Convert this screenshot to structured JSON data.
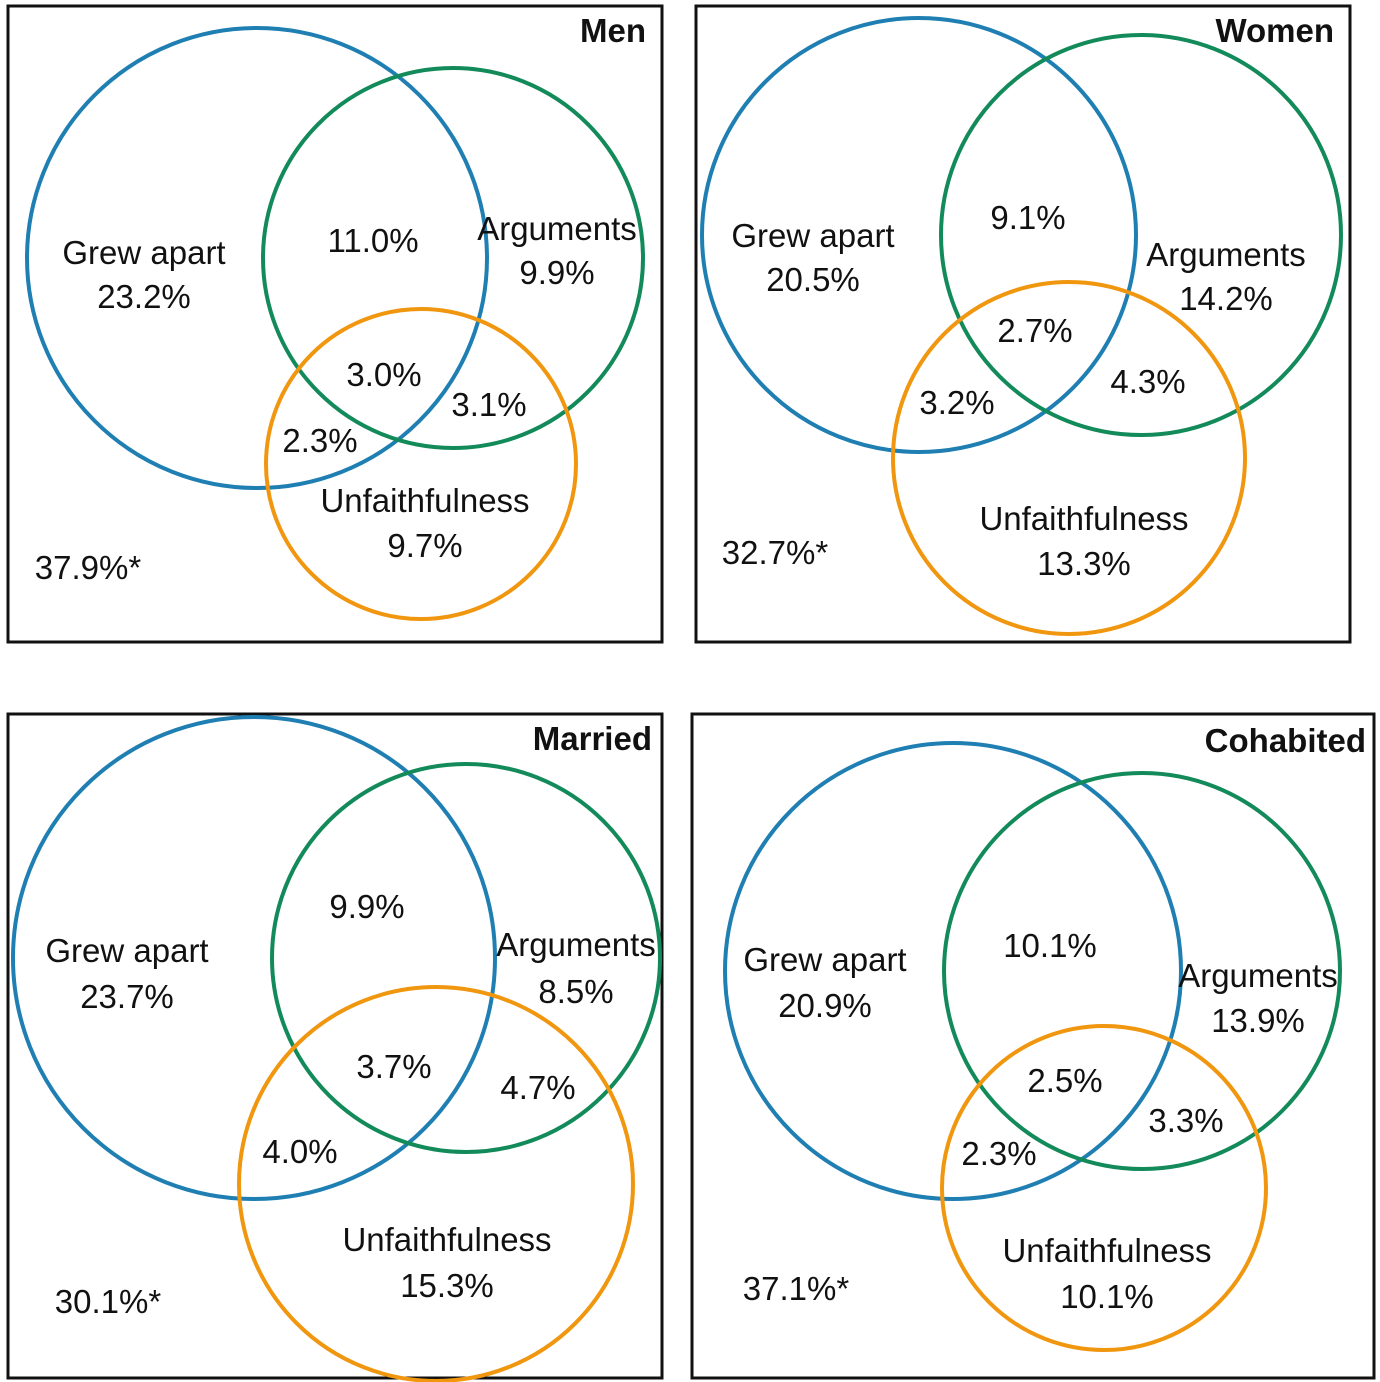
{
  "colors": {
    "grew_apart": "#1f7fb2",
    "arguments": "#138a5a",
    "unfaithfulness": "#f0960f",
    "frame": "#111111",
    "text": "#111111"
  },
  "panels": [
    {
      "id": "men",
      "title": "Men",
      "grew_apart_label": "Grew apart",
      "grew_apart_value": "23.2%",
      "arguments_label": "Arguments",
      "arguments_value": "9.9%",
      "unfaithfulness_label": "Unfaithfulness",
      "unfaithfulness_value": "9.7%",
      "grew_apart_and_arguments": "11.0%",
      "all_three": "3.0%",
      "arguments_and_unfaithfulness": "3.1%",
      "grew_apart_and_unfaithfulness": "2.3%",
      "none": "37.9%*"
    },
    {
      "id": "women",
      "title": "Women",
      "grew_apart_label": "Grew apart",
      "grew_apart_value": "20.5%",
      "arguments_label": "Arguments",
      "arguments_value": "14.2%",
      "unfaithfulness_label": "Unfaithfulness",
      "unfaithfulness_value": "13.3%",
      "grew_apart_and_arguments": "9.1%",
      "all_three": "2.7%",
      "arguments_and_unfaithfulness": "4.3%",
      "grew_apart_and_unfaithfulness": "3.2%",
      "none": "32.7%*"
    },
    {
      "id": "married",
      "title": "Married",
      "grew_apart_label": "Grew apart",
      "grew_apart_value": "23.7%",
      "arguments_label": "Arguments",
      "arguments_value": "8.5%",
      "unfaithfulness_label": "Unfaithfulness",
      "unfaithfulness_value": "15.3%",
      "grew_apart_and_arguments": "9.9%",
      "all_three": "3.7%",
      "arguments_and_unfaithfulness": "4.7%",
      "grew_apart_and_unfaithfulness": "4.0%",
      "none": "30.1%*"
    },
    {
      "id": "cohabited",
      "title": "Cohabited",
      "grew_apart_label": "Grew apart",
      "grew_apart_value": "20.9%",
      "arguments_label": "Arguments",
      "arguments_value": "13.9%",
      "unfaithfulness_label": "Unfaithfulness",
      "unfaithfulness_value": "10.1%",
      "grew_apart_and_arguments": "10.1%",
      "all_three": "2.5%",
      "arguments_and_unfaithfulness": "3.3%",
      "grew_apart_and_unfaithfulness": "2.3%",
      "none": "37.1%*"
    }
  ]
}
